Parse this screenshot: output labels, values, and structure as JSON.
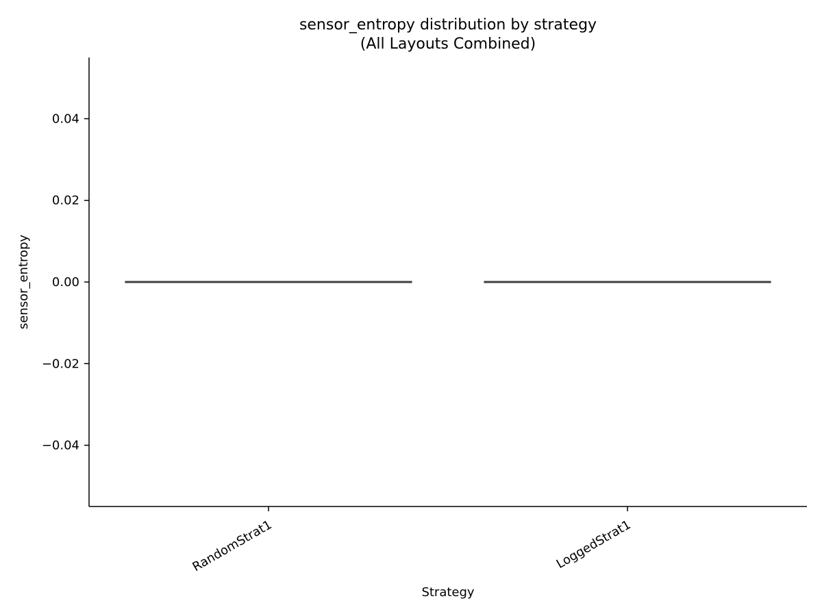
{
  "chart_data": {
    "type": "box",
    "title": "sensor_entropy distribution by strategy",
    "subtitle": "(All Layouts Combined)",
    "xlabel": "Strategy",
    "ylabel": "sensor_entropy",
    "categories": [
      "RandomStrat1",
      "LoggedStrat1"
    ],
    "values": [
      0.0,
      0.0
    ],
    "ylim": [
      -0.055,
      0.055
    ],
    "yticks": [
      0.04,
      0.02,
      0.0,
      -0.02,
      -0.04
    ],
    "ytick_labels": [
      "0.04",
      "0.02",
      "0.00",
      "−0.02",
      "−0.04"
    ],
    "grid": false,
    "line_color": "#3f3f3f"
  }
}
